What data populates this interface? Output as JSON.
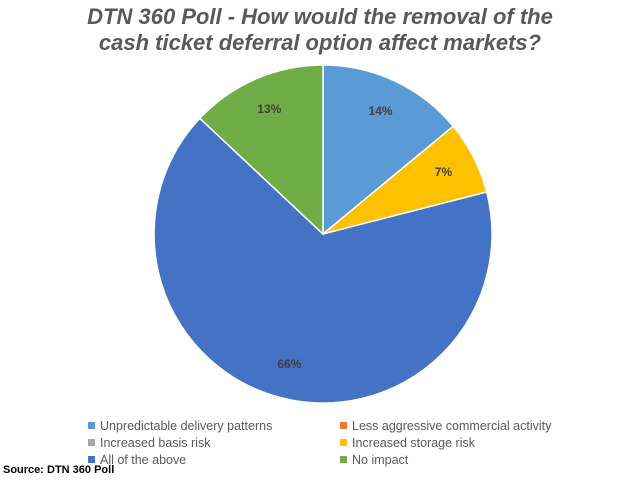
{
  "chart_data": {
    "type": "pie",
    "title_lines": [
      "DTN 360 Poll - How would the removal of the",
      "cash ticket deferral option affect markets?"
    ],
    "slices": [
      {
        "label": "Unpredictable delivery patterns",
        "value": 14,
        "data_label": "14%",
        "color": "#5B9BD5"
      },
      {
        "label": "Less aggressive commercial activity",
        "value": 0,
        "data_label": "",
        "color": "#ED7D31"
      },
      {
        "label": "Increased basis risk",
        "value": 0,
        "data_label": "",
        "color": "#A5A5A5"
      },
      {
        "label": "Increased storage risk",
        "value": 7,
        "data_label": "7%",
        "color": "#FFC000"
      },
      {
        "label": "All of the above",
        "value": 66,
        "data_label": "66%",
        "color": "#4472C4"
      },
      {
        "label": "No impact",
        "value": 13,
        "data_label": "13%",
        "color": "#70AD47"
      }
    ],
    "legend_placement": "bottom"
  },
  "source": "Source: DTN 360 Poll"
}
